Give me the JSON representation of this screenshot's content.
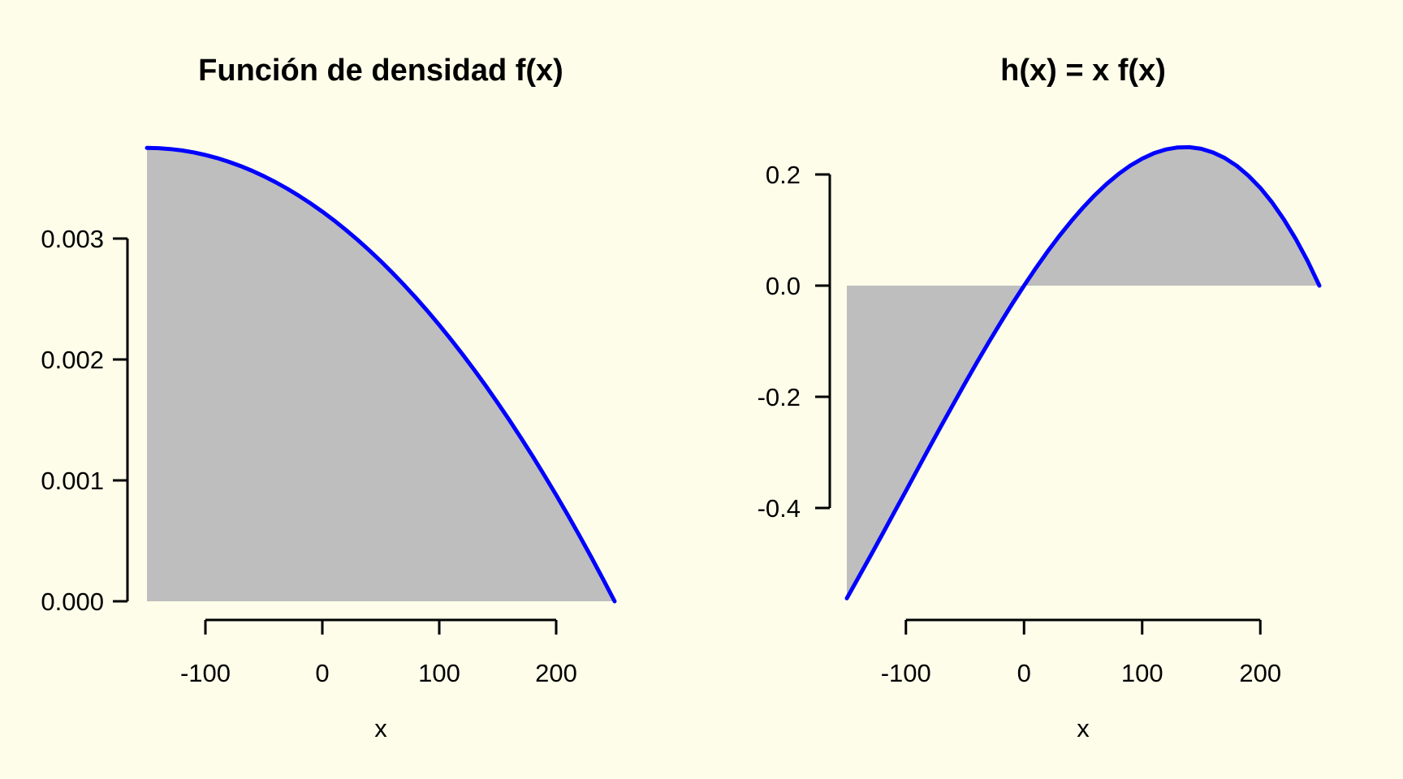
{
  "figure": {
    "background_color": "#FDFDEA",
    "curve_color": "#0000FF",
    "fill_color": "#BEBEBE",
    "axis_color": "#000000"
  },
  "chart_data": [
    {
      "type": "area",
      "title": "Función de densidad f(x)",
      "xlabel": "x",
      "ylabel": "",
      "xlim": [
        -150,
        250
      ],
      "ylim": [
        0,
        0.00375
      ],
      "baseline": 0,
      "grid": false,
      "legend": "none",
      "line_color": "#0000FF",
      "fill_color": "#BEBEBE",
      "xticks": {
        "values": [
          -100,
          0,
          100,
          200
        ],
        "labels": [
          "-100",
          "0",
          "100",
          "200"
        ]
      },
      "yticks": {
        "values": [
          0,
          0.001,
          0.002,
          0.003
        ],
        "labels": [
          "0.000",
          "0.001",
          "0.002",
          "0.003"
        ]
      },
      "x": [
        -150,
        -140,
        -130,
        -120,
        -110,
        -100,
        -90,
        -80,
        -70,
        -60,
        -50,
        -40,
        -30,
        -20,
        -10,
        0,
        10,
        20,
        30,
        40,
        50,
        60,
        70,
        80,
        90,
        100,
        110,
        120,
        130,
        140,
        150,
        160,
        170,
        180,
        190,
        200,
        210,
        220,
        230,
        240,
        250
      ],
      "y": [
        0.00375,
        0.0037477,
        0.0037406,
        0.0037289,
        0.0037125,
        0.0036914,
        0.0036656,
        0.0036352,
        0.0036,
        0.0035602,
        0.0035156,
        0.0034664,
        0.0034125,
        0.0033539,
        0.0032906,
        0.0032227,
        0.00315,
        0.0030727,
        0.0029906,
        0.0029039,
        0.0028125,
        0.0027164,
        0.0026156,
        0.0025102,
        0.0024,
        0.0022852,
        0.0021656,
        0.0020414,
        0.0019125,
        0.0017789,
        0.0016406,
        0.0014977,
        0.00135,
        0.0011977,
        0.0010406,
        0.0008789,
        0.0007125,
        0.0005414,
        0.0003656,
        0.0001852,
        0
      ]
    },
    {
      "type": "area",
      "title": "h(x) = x f(x)",
      "xlabel": "x",
      "ylabel": "",
      "xlim": [
        -150,
        250
      ],
      "ylim": [
        -0.5625,
        0.249
      ],
      "baseline": 0,
      "grid": false,
      "legend": "none",
      "line_color": "#0000FF",
      "fill_color": "#BEBEBE",
      "xticks": {
        "values": [
          -100,
          0,
          100,
          200
        ],
        "labels": [
          "-100",
          "0",
          "100",
          "200"
        ]
      },
      "yticks": {
        "values": [
          -0.4,
          -0.2,
          0,
          0.2
        ],
        "labels": [
          "-0.4",
          "-0.2",
          "0.0",
          "0.2"
        ]
      },
      "x": [
        -150,
        -140,
        -130,
        -120,
        -110,
        -100,
        -90,
        -80,
        -70,
        -60,
        -50,
        -40,
        -30,
        -20,
        -10,
        0,
        10,
        20,
        30,
        40,
        50,
        60,
        70,
        80,
        90,
        100,
        110,
        120,
        130,
        140,
        150,
        160,
        170,
        180,
        190,
        200,
        210,
        220,
        230,
        240,
        250
      ],
      "y": [
        -0.5625,
        -0.5246719,
        -0.4862813,
        -0.4474688,
        -0.408375,
        -0.3691406,
        -0.3299063,
        -0.2908125,
        -0.252,
        -0.2136094,
        -0.1757813,
        -0.1386563,
        -0.102375,
        -0.0670781,
        -0.0329063,
        0,
        0.0315,
        0.0614531,
        0.0897188,
        0.1161563,
        0.140625,
        0.1629844,
        0.1830938,
        0.2008125,
        0.216,
        0.2285156,
        0.2382188,
        0.2449688,
        0.248625,
        0.2490469,
        0.2460938,
        0.239625,
        0.2295,
        0.2155781,
        0.1977188,
        0.1757813,
        0.149625,
        0.1191094,
        0.0840938,
        0.0444375,
        0
      ]
    }
  ]
}
